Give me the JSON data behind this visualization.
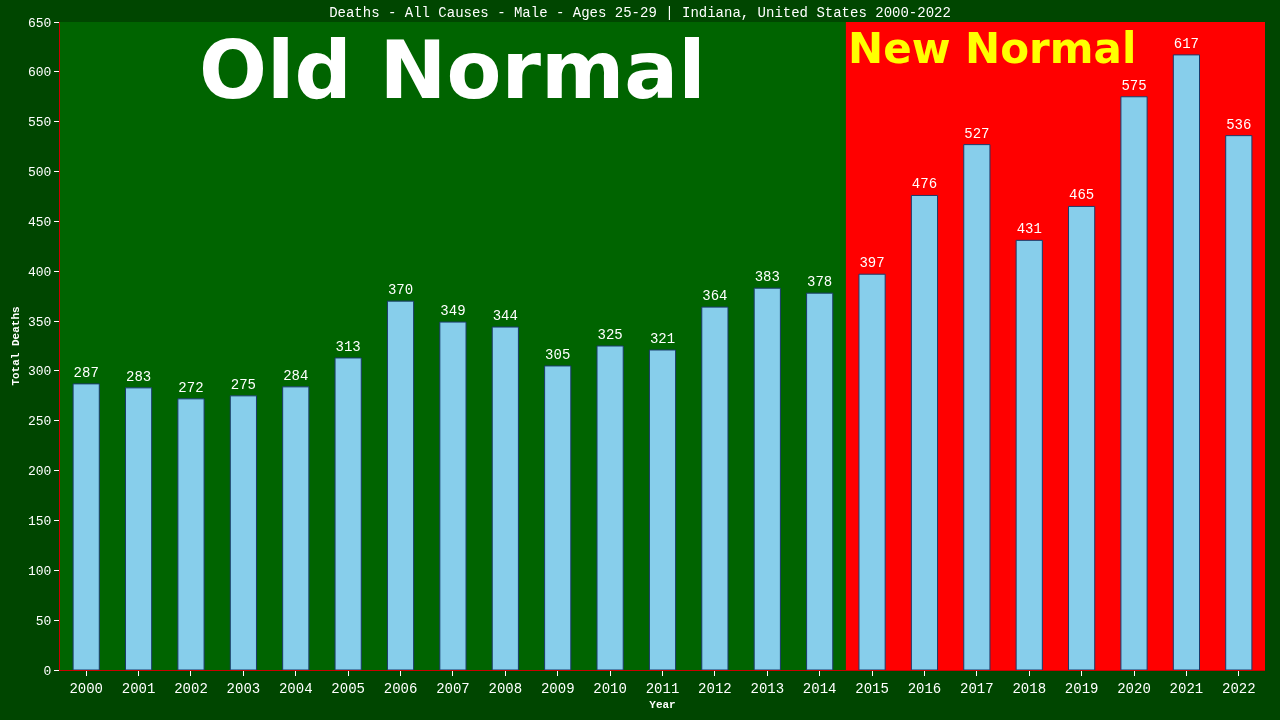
{
  "chart_data": {
    "type": "bar",
    "title": "Deaths - All Causes - Male - Ages 25-29 | Indiana, United States 2000-2022",
    "xlabel": "Year",
    "ylabel": "Total Deaths",
    "categories": [
      "2000",
      "2001",
      "2002",
      "2003",
      "2004",
      "2005",
      "2006",
      "2007",
      "2008",
      "2009",
      "2010",
      "2011",
      "2012",
      "2013",
      "2014",
      "2015",
      "2016",
      "2017",
      "2018",
      "2019",
      "2020",
      "2021",
      "2022"
    ],
    "values": [
      287,
      283,
      272,
      275,
      284,
      313,
      370,
      349,
      344,
      305,
      325,
      321,
      364,
      383,
      378,
      397,
      476,
      527,
      431,
      465,
      575,
      617,
      536
    ],
    "color": "#87ceeb",
    "data_labels": true,
    "ylim": [
      0,
      650
    ],
    "yticks": [
      0,
      50,
      100,
      150,
      200,
      250,
      300,
      350,
      400,
      450,
      500,
      550,
      600,
      650
    ],
    "bands": [
      {
        "axis": "x",
        "from": "2000",
        "to": "2014",
        "label": "Old Normal",
        "color": "#006400"
      },
      {
        "axis": "x",
        "from": "2015",
        "to": "2022",
        "label": "New Normal",
        "color": "#ff0000"
      }
    ]
  }
}
